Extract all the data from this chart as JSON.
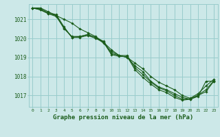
{
  "title": "Graphe pression niveau de la mer (hPa)",
  "hours": [
    0,
    1,
    2,
    3,
    4,
    5,
    6,
    7,
    8,
    9,
    10,
    11,
    12,
    13,
    14,
    15,
    16,
    17,
    18,
    19,
    20,
    21,
    22,
    23
  ],
  "ylim": [
    1016.4,
    1021.8
  ],
  "yticks": [
    1017,
    1018,
    1019,
    1020,
    1021
  ],
  "background_color": "#cce8e8",
  "grid_color": "#99cccc",
  "line_color": "#1a5c1a",
  "series": [
    [
      1021.6,
      1021.6,
      1021.4,
      1021.2,
      1021.0,
      1020.8,
      1020.5,
      1020.3,
      1020.1,
      1019.8,
      1019.4,
      1019.1,
      1019.0,
      1018.7,
      1018.4,
      1018.0,
      1017.7,
      1017.5,
      1017.3,
      1017.0,
      1016.85,
      1017.1,
      1017.5,
      1017.85
    ],
    [
      1021.6,
      1021.5,
      1021.3,
      1021.2,
      1020.5,
      1020.1,
      1020.1,
      1020.2,
      1020.05,
      1019.75,
      1019.3,
      1019.1,
      1019.0,
      1018.55,
      1018.25,
      1017.75,
      1017.45,
      1017.3,
      1017.1,
      1016.9,
      1016.8,
      1017.0,
      1017.2,
      1017.75
    ],
    [
      1021.6,
      1021.5,
      1021.3,
      1021.15,
      1020.55,
      1020.05,
      1020.05,
      1020.15,
      1020.0,
      1019.8,
      1019.15,
      1019.05,
      1019.05,
      1018.35,
      1017.95,
      1017.6,
      1017.3,
      1017.15,
      1016.9,
      1016.75,
      1016.8,
      1016.95,
      1017.75,
      1017.75
    ],
    [
      1021.6,
      1021.55,
      1021.35,
      1021.25,
      1020.6,
      1020.05,
      1020.1,
      1020.2,
      1020.05,
      1019.85,
      1019.2,
      1019.1,
      1019.1,
      1018.45,
      1018.1,
      1017.7,
      1017.4,
      1017.25,
      1017.0,
      1016.8,
      1016.82,
      1017.02,
      1017.3,
      1017.78
    ]
  ]
}
